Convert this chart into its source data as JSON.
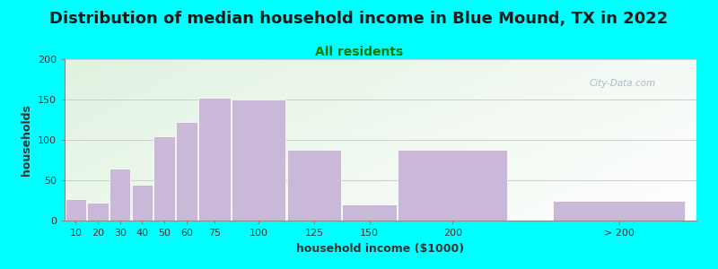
{
  "title": "Distribution of median household income in Blue Mound, TX in 2022",
  "subtitle": "All residents",
  "xlabel": "household income ($1000)",
  "ylabel": "households",
  "bar_labels": [
    "10",
    "20",
    "30",
    "40",
    "50",
    "60",
    "75",
    "100",
    "125",
    "150",
    "200",
    "> 200"
  ],
  "bar_values": [
    27,
    22,
    65,
    44,
    105,
    122,
    152,
    150,
    88,
    20,
    88,
    25
  ],
  "bar_widths": [
    10,
    10,
    10,
    10,
    10,
    10,
    15,
    25,
    25,
    25,
    50,
    60
  ],
  "bar_lefts": [
    5,
    15,
    25,
    35,
    45,
    55,
    65,
    80,
    105,
    130,
    155,
    225
  ],
  "bar_color": "#c9b8d8",
  "bar_edgecolor": "#ffffff",
  "background_color": "#00ffff",
  "ylim": [
    0,
    200
  ],
  "yticks": [
    0,
    50,
    100,
    150,
    200
  ],
  "title_fontsize": 13,
  "subtitle_fontsize": 10,
  "title_color": "#1a1a1a",
  "subtitle_color": "#007700",
  "axis_label_fontsize": 9,
  "tick_fontsize": 8,
  "watermark_text": "City-Data.com",
  "watermark_color": "#b0bcc8",
  "grid_color": "#cccccc",
  "xlim_left": 5,
  "xlim_right": 290
}
